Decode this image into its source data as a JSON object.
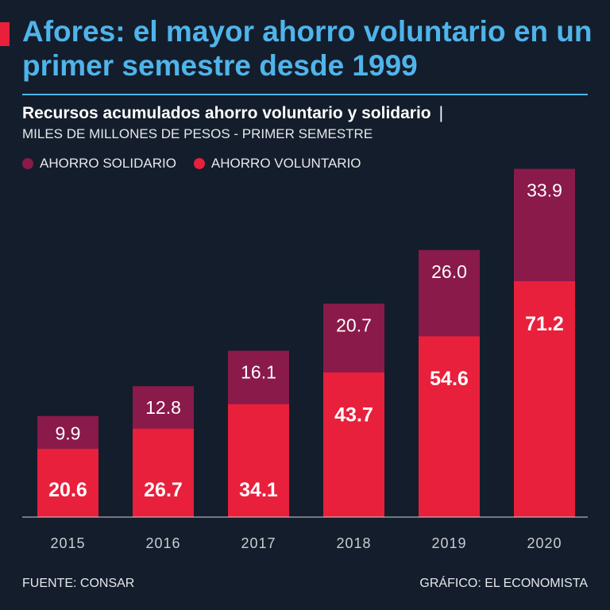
{
  "header": {
    "title": "Afores: el mayor ahorro voluntario en un primer semestre desde 1999",
    "subtitle": "Recursos acumulados ahorro voluntario y solidario",
    "subtitle_separator": "|",
    "units": "MILES DE MILLONES DE PESOS - PRIMER SEMESTRE"
  },
  "colors": {
    "solidario": "#8a1a4a",
    "voluntario": "#e8203c",
    "title": "#4fb4ea"
  },
  "chart_data": {
    "type": "bar",
    "stacked": true,
    "categories": [
      "2015",
      "2016",
      "2017",
      "2018",
      "2019",
      "2020"
    ],
    "series": [
      {
        "name": "AHORRO VOLUNTARIO",
        "values": [
          20.6,
          26.7,
          34.1,
          43.7,
          54.6,
          71.2
        ]
      },
      {
        "name": "AHORRO SOLIDARIO",
        "values": [
          9.9,
          12.8,
          16.1,
          20.7,
          26.0,
          33.9
        ]
      }
    ],
    "ylim": [
      0,
      105
    ],
    "grid": false,
    "legend": [
      "AHORRO SOLIDARIO",
      "AHORRO VOLUNTARIO"
    ],
    "legend_position": "top-left"
  },
  "footer": {
    "source": "FUENTE: CONSAR",
    "credit": "GRÁFICO: EL ECONOMISTA"
  }
}
